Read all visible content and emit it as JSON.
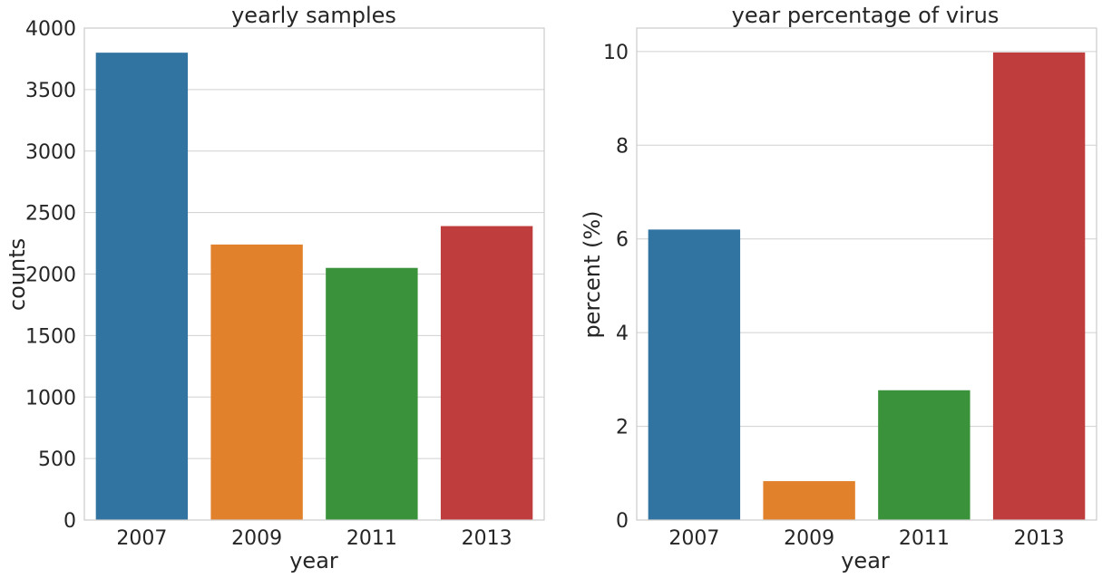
{
  "chart_data": [
    {
      "type": "bar",
      "title": "yearly samples",
      "xlabel": "year",
      "ylabel": "counts",
      "categories": [
        "2007",
        "2009",
        "2011",
        "2013"
      ],
      "values": [
        3800,
        2240,
        2050,
        2390
      ],
      "colors": [
        "#3274a1",
        "#e1812c",
        "#3a923a",
        "#c03d3e"
      ],
      "ylim": [
        0,
        4000
      ],
      "yticks": [
        0,
        500,
        1000,
        1500,
        2000,
        2500,
        3000,
        3500,
        4000
      ],
      "grid": "horizontal",
      "legend": "none"
    },
    {
      "type": "bar",
      "title": "year percentage of virus",
      "xlabel": "year",
      "ylabel": "percent (%)",
      "categories": [
        "2007",
        "2009",
        "2011",
        "2013"
      ],
      "values": [
        6.2,
        0.83,
        2.77,
        9.98
      ],
      "colors": [
        "#3274a1",
        "#e1812c",
        "#3a923a",
        "#c03d3e"
      ],
      "ylim": [
        0,
        10.5
      ],
      "yticks": [
        0,
        2,
        4,
        6,
        8,
        10
      ],
      "grid": "horizontal",
      "legend": "none"
    }
  ]
}
